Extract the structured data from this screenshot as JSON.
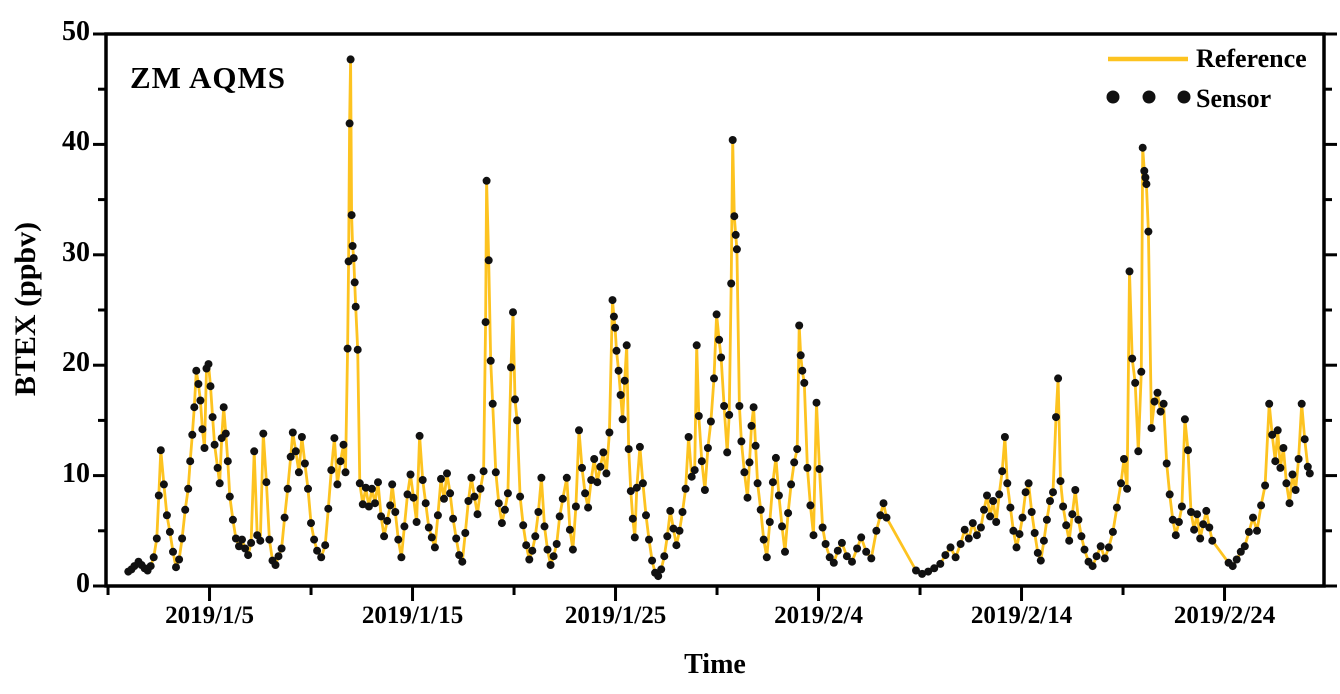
{
  "chart_data": {
    "type": "line+scatter",
    "station": "ZM AQMS",
    "xlabel": "Time",
    "ylabel": "BTEX (ppbv)",
    "legend_position": "top-right inside plot",
    "grid": false,
    "x_axis": {
      "unit": "days since 2019-01-01 00:00",
      "range": [
        -1.1,
        58.9
      ],
      "major_tick_days": [
        4,
        14,
        24,
        34,
        44,
        54
      ],
      "major_tick_labels": [
        "2019/1/5",
        "2019/1/15",
        "2019/1/25",
        "2019/2/4",
        "2019/2/14",
        "2019/2/24"
      ],
      "minor_tick_days": [
        -1,
        9,
        19,
        29,
        39,
        49
      ]
    },
    "y_axis": {
      "range": [
        0,
        50
      ],
      "major_ticks": [
        0,
        10,
        20,
        30,
        40,
        50
      ],
      "major_tick_labels": [
        "0",
        "10",
        "20",
        "30",
        "40",
        "50"
      ],
      "minor_ticks": [
        5,
        15,
        25,
        35,
        45
      ]
    },
    "series": [
      {
        "name": "Reference",
        "type": "line",
        "color": "#FDC320"
      },
      {
        "name": "Sensor",
        "type": "scatter",
        "color": "#111111"
      }
    ],
    "note": "Sensor scatter points coincide with the Reference line; values in ppbv estimated from axes",
    "points": [
      [
        0,
        1.3
      ],
      [
        0.15,
        1.5
      ],
      [
        0.3,
        1.8
      ],
      [
        0.5,
        2.2
      ],
      [
        0.65,
        1.9
      ],
      [
        0.8,
        1.6
      ],
      [
        0.95,
        1.4
      ],
      [
        1.1,
        1.8
      ],
      [
        1.25,
        2.6
      ],
      [
        1.4,
        4.3
      ],
      [
        1.5,
        8.2
      ],
      [
        1.6,
        12.3
      ],
      [
        1.75,
        9.2
      ],
      [
        1.9,
        6.4
      ],
      [
        2.05,
        4.9
      ],
      [
        2.2,
        3.1
      ],
      [
        2.35,
        1.7
      ],
      [
        2.5,
        2.4
      ],
      [
        2.65,
        4.3
      ],
      [
        2.8,
        6.9
      ],
      [
        2.95,
        8.8
      ],
      [
        3.05,
        11.3
      ],
      [
        3.15,
        13.7
      ],
      [
        3.25,
        16.2
      ],
      [
        3.35,
        19.5
      ],
      [
        3.45,
        18.3
      ],
      [
        3.55,
        16.8
      ],
      [
        3.65,
        14.2
      ],
      [
        3.75,
        12.5
      ],
      [
        3.85,
        19.7
      ],
      [
        3.95,
        20.1
      ],
      [
        4.05,
        18.1
      ],
      [
        4.15,
        15.3
      ],
      [
        4.25,
        12.8
      ],
      [
        4.4,
        10.7
      ],
      [
        4.5,
        9.3
      ],
      [
        4.6,
        13.4
      ],
      [
        4.7,
        16.2
      ],
      [
        4.8,
        13.8
      ],
      [
        4.9,
        11.3
      ],
      [
        5,
        8.1
      ],
      [
        5.15,
        6
      ],
      [
        5.3,
        4.3
      ],
      [
        5.45,
        3.6
      ],
      [
        5.6,
        4.2
      ],
      [
        5.75,
        3.4
      ],
      [
        5.9,
        2.8
      ],
      [
        6.05,
        3.9
      ],
      [
        6.2,
        12.2
      ],
      [
        6.35,
        4.6
      ],
      [
        6.5,
        4.1
      ],
      [
        6.65,
        13.8
      ],
      [
        6.8,
        9.4
      ],
      [
        6.95,
        4.2
      ],
      [
        7.1,
        2.3
      ],
      [
        7.25,
        1.9
      ],
      [
        7.4,
        2.7
      ],
      [
        7.55,
        3.4
      ],
      [
        7.7,
        6.2
      ],
      [
        7.85,
        8.8
      ],
      [
        8,
        11.7
      ],
      [
        8.1,
        13.9
      ],
      [
        8.25,
        12.2
      ],
      [
        8.4,
        10.3
      ],
      [
        8.55,
        13.5
      ],
      [
        8.7,
        11.1
      ],
      [
        8.85,
        8.8
      ],
      [
        9,
        5.7
      ],
      [
        9.15,
        4.2
      ],
      [
        9.3,
        3.2
      ],
      [
        9.5,
        2.6
      ],
      [
        9.7,
        3.7
      ],
      [
        9.85,
        7
      ],
      [
        10,
        10.5
      ],
      [
        10.15,
        13.4
      ],
      [
        10.3,
        9.2
      ],
      [
        10.45,
        11.3
      ],
      [
        10.6,
        12.8
      ],
      [
        10.7,
        10.3
      ],
      [
        10.8,
        21.5
      ],
      [
        10.85,
        29.4
      ],
      [
        10.9,
        41.9
      ],
      [
        10.95,
        47.7
      ],
      [
        11,
        33.6
      ],
      [
        11.05,
        30.8
      ],
      [
        11.1,
        29.7
      ],
      [
        11.15,
        27.5
      ],
      [
        11.2,
        25.3
      ],
      [
        11.3,
        21.4
      ],
      [
        11.4,
        9.3
      ],
      [
        11.55,
        7.4
      ],
      [
        11.7,
        8.9
      ],
      [
        11.85,
        7.2
      ],
      [
        12,
        8.8
      ],
      [
        12.15,
        7.5
      ],
      [
        12.3,
        9.4
      ],
      [
        12.45,
        6.3
      ],
      [
        12.6,
        4.5
      ],
      [
        12.75,
        5.9
      ],
      [
        12.9,
        7.3
      ],
      [
        13,
        9.2
      ],
      [
        13.15,
        6.7
      ],
      [
        13.3,
        4.2
      ],
      [
        13.45,
        2.6
      ],
      [
        13.6,
        5.4
      ],
      [
        13.75,
        8.3
      ],
      [
        13.9,
        10.1
      ],
      [
        14.05,
        8
      ],
      [
        14.2,
        5.8
      ],
      [
        14.35,
        13.6
      ],
      [
        14.5,
        9.6
      ],
      [
        14.65,
        7.5
      ],
      [
        14.8,
        5.3
      ],
      [
        14.95,
        4.4
      ],
      [
        15.1,
        3.5
      ],
      [
        15.25,
        6.4
      ],
      [
        15.4,
        9.7
      ],
      [
        15.55,
        7.9
      ],
      [
        15.7,
        10.2
      ],
      [
        15.85,
        8.4
      ],
      [
        16,
        6.1
      ],
      [
        16.15,
        4.3
      ],
      [
        16.3,
        2.8
      ],
      [
        16.45,
        2.2
      ],
      [
        16.6,
        4.8
      ],
      [
        16.75,
        7.7
      ],
      [
        16.9,
        9.8
      ],
      [
        17.05,
        8.1
      ],
      [
        17.2,
        6.5
      ],
      [
        17.35,
        8.8
      ],
      [
        17.5,
        10.4
      ],
      [
        17.6,
        23.9
      ],
      [
        17.65,
        36.7
      ],
      [
        17.75,
        29.5
      ],
      [
        17.85,
        20.4
      ],
      [
        17.95,
        16.5
      ],
      [
        18.1,
        10.3
      ],
      [
        18.25,
        7.5
      ],
      [
        18.4,
        5.7
      ],
      [
        18.55,
        6.9
      ],
      [
        18.7,
        8.4
      ],
      [
        18.85,
        19.8
      ],
      [
        18.95,
        24.8
      ],
      [
        19.05,
        16.9
      ],
      [
        19.15,
        15
      ],
      [
        19.3,
        8.1
      ],
      [
        19.45,
        5.5
      ],
      [
        19.6,
        3.7
      ],
      [
        19.75,
        2.4
      ],
      [
        19.9,
        3.2
      ],
      [
        20.05,
        4.5
      ],
      [
        20.2,
        6.7
      ],
      [
        20.35,
        9.8
      ],
      [
        20.5,
        5.4
      ],
      [
        20.65,
        3.3
      ],
      [
        20.8,
        1.9
      ],
      [
        20.95,
        2.7
      ],
      [
        21.1,
        3.8
      ],
      [
        21.25,
        6.3
      ],
      [
        21.4,
        7.9
      ],
      [
        21.6,
        9.8
      ],
      [
        21.75,
        5.1
      ],
      [
        21.9,
        3.3
      ],
      [
        22.05,
        7.2
      ],
      [
        22.2,
        14.1
      ],
      [
        22.35,
        10.7
      ],
      [
        22.5,
        8.4
      ],
      [
        22.65,
        7.1
      ],
      [
        22.8,
        9.6
      ],
      [
        22.95,
        11.5
      ],
      [
        23.1,
        9.4
      ],
      [
        23.25,
        10.8
      ],
      [
        23.4,
        12.1
      ],
      [
        23.55,
        10.2
      ],
      [
        23.7,
        13.9
      ],
      [
        23.85,
        25.9
      ],
      [
        23.92,
        24.4
      ],
      [
        23.98,
        23.4
      ],
      [
        24.05,
        21.3
      ],
      [
        24.15,
        19.5
      ],
      [
        24.25,
        17.3
      ],
      [
        24.35,
        15.1
      ],
      [
        24.45,
        18.6
      ],
      [
        24.55,
        21.8
      ],
      [
        24.65,
        12.4
      ],
      [
        24.75,
        8.6
      ],
      [
        24.85,
        6.1
      ],
      [
        24.95,
        4.4
      ],
      [
        25.05,
        8.9
      ],
      [
        25.2,
        12.6
      ],
      [
        25.35,
        9.3
      ],
      [
        25.5,
        6.4
      ],
      [
        25.65,
        4.2
      ],
      [
        25.8,
        2.3
      ],
      [
        25.95,
        1.2
      ],
      [
        26.1,
        0.9
      ],
      [
        26.25,
        1.5
      ],
      [
        26.4,
        2.7
      ],
      [
        26.55,
        4.5
      ],
      [
        26.7,
        6.8
      ],
      [
        26.85,
        5.2
      ],
      [
        27,
        3.7
      ],
      [
        27.15,
        5
      ],
      [
        27.3,
        6.7
      ],
      [
        27.45,
        8.8
      ],
      [
        27.6,
        13.5
      ],
      [
        27.75,
        9.9
      ],
      [
        27.9,
        10.5
      ],
      [
        28,
        21.8
      ],
      [
        28.1,
        15.4
      ],
      [
        28.25,
        11.3
      ],
      [
        28.4,
        8.7
      ],
      [
        28.55,
        12.5
      ],
      [
        28.7,
        14.9
      ],
      [
        28.85,
        18.8
      ],
      [
        28.98,
        24.6
      ],
      [
        29.1,
        22.3
      ],
      [
        29.2,
        20.7
      ],
      [
        29.35,
        16.3
      ],
      [
        29.5,
        12.1
      ],
      [
        29.6,
        15.5
      ],
      [
        29.7,
        27.4
      ],
      [
        29.77,
        40.4
      ],
      [
        29.85,
        33.5
      ],
      [
        29.92,
        31.8
      ],
      [
        29.98,
        30.5
      ],
      [
        30.1,
        16.3
      ],
      [
        30.2,
        13.1
      ],
      [
        30.35,
        10.3
      ],
      [
        30.5,
        8
      ],
      [
        30.6,
        11.2
      ],
      [
        30.7,
        14.5
      ],
      [
        30.8,
        16.2
      ],
      [
        30.9,
        12.7
      ],
      [
        31,
        9.3
      ],
      [
        31.15,
        6.9
      ],
      [
        31.3,
        4.2
      ],
      [
        31.45,
        2.6
      ],
      [
        31.6,
        5.8
      ],
      [
        31.75,
        9.4
      ],
      [
        31.9,
        11.6
      ],
      [
        32.05,
        8.2
      ],
      [
        32.2,
        5.4
      ],
      [
        32.35,
        3.1
      ],
      [
        32.5,
        6.6
      ],
      [
        32.65,
        9.2
      ],
      [
        32.8,
        11.2
      ],
      [
        32.95,
        12.4
      ],
      [
        33.05,
        23.6
      ],
      [
        33.12,
        20.9
      ],
      [
        33.2,
        19.5
      ],
      [
        33.3,
        18.4
      ],
      [
        33.45,
        10.7
      ],
      [
        33.6,
        7.3
      ],
      [
        33.75,
        4.6
      ],
      [
        33.9,
        16.6
      ],
      [
        34.05,
        10.6
      ],
      [
        34.2,
        5.3
      ],
      [
        34.35,
        3.8
      ],
      [
        34.55,
        2.6
      ],
      [
        34.75,
        2.1
      ],
      [
        34.95,
        3.2
      ],
      [
        35.15,
        3.9
      ],
      [
        35.4,
        2.7
      ],
      [
        35.65,
        2.2
      ],
      [
        35.9,
        3.4
      ],
      [
        36.1,
        4.4
      ],
      [
        36.35,
        3.1
      ],
      [
        36.6,
        2.5
      ],
      [
        36.85,
        5
      ],
      [
        37.05,
        6.4
      ],
      [
        37.2,
        7.5
      ],
      [
        37.35,
        6.2
      ],
      [
        38.8,
        1.4
      ],
      [
        39.1,
        1.1
      ],
      [
        39.4,
        1.3
      ],
      [
        39.7,
        1.6
      ],
      [
        40,
        2
      ],
      [
        40.25,
        2.8
      ],
      [
        40.5,
        3.5
      ],
      [
        40.75,
        2.6
      ],
      [
        41,
        3.8
      ],
      [
        41.2,
        5.1
      ],
      [
        41.4,
        4.3
      ],
      [
        41.6,
        5.7
      ],
      [
        41.8,
        4.6
      ],
      [
        42,
        5.3
      ],
      [
        42.15,
        6.9
      ],
      [
        42.3,
        8.2
      ],
      [
        42.45,
        6.3
      ],
      [
        42.6,
        7.7
      ],
      [
        42.75,
        5.8
      ],
      [
        42.9,
        8.3
      ],
      [
        43.05,
        10.4
      ],
      [
        43.18,
        13.5
      ],
      [
        43.3,
        9.3
      ],
      [
        43.45,
        7.1
      ],
      [
        43.6,
        5
      ],
      [
        43.75,
        3.5
      ],
      [
        43.9,
        4.7
      ],
      [
        44.05,
        6.2
      ],
      [
        44.2,
        8.5
      ],
      [
        44.35,
        9.3
      ],
      [
        44.5,
        6.7
      ],
      [
        44.65,
        4.8
      ],
      [
        44.8,
        3
      ],
      [
        44.95,
        2.3
      ],
      [
        45.1,
        4.1
      ],
      [
        45.25,
        6
      ],
      [
        45.4,
        7.7
      ],
      [
        45.55,
        8.5
      ],
      [
        45.7,
        15.3
      ],
      [
        45.8,
        18.8
      ],
      [
        45.92,
        9.5
      ],
      [
        46.05,
        7.2
      ],
      [
        46.2,
        5.5
      ],
      [
        46.35,
        4.1
      ],
      [
        46.5,
        6.5
      ],
      [
        46.65,
        8.7
      ],
      [
        46.8,
        6
      ],
      [
        46.95,
        4.5
      ],
      [
        47.1,
        3.3
      ],
      [
        47.3,
        2.2
      ],
      [
        47.5,
        1.8
      ],
      [
        47.7,
        2.7
      ],
      [
        47.9,
        3.6
      ],
      [
        48.1,
        2.5
      ],
      [
        48.3,
        3.5
      ],
      [
        48.5,
        4.9
      ],
      [
        48.7,
        7.1
      ],
      [
        48.9,
        9.3
      ],
      [
        49.05,
        11.5
      ],
      [
        49.2,
        8.8
      ],
      [
        49.32,
        28.5
      ],
      [
        49.45,
        20.6
      ],
      [
        49.6,
        18.4
      ],
      [
        49.75,
        12.2
      ],
      [
        49.9,
        19.4
      ],
      [
        49.97,
        39.7
      ],
      [
        50.05,
        37.6
      ],
      [
        50.1,
        37
      ],
      [
        50.15,
        36.4
      ],
      [
        50.25,
        32.1
      ],
      [
        50.4,
        14.3
      ],
      [
        50.55,
        16.7
      ],
      [
        50.7,
        17.5
      ],
      [
        50.85,
        15.8
      ],
      [
        51,
        16.5
      ],
      [
        51.15,
        11.1
      ],
      [
        51.3,
        8.3
      ],
      [
        51.45,
        6
      ],
      [
        51.6,
        4.6
      ],
      [
        51.75,
        5.8
      ],
      [
        51.9,
        7.2
      ],
      [
        52.05,
        15.1
      ],
      [
        52.2,
        12.3
      ],
      [
        52.35,
        6.7
      ],
      [
        52.5,
        5.1
      ],
      [
        52.65,
        6.5
      ],
      [
        52.8,
        4.3
      ],
      [
        52.95,
        5.6
      ],
      [
        53.1,
        6.8
      ],
      [
        53.25,
        5.3
      ],
      [
        53.4,
        4.1
      ],
      [
        54.2,
        2.1
      ],
      [
        54.4,
        1.8
      ],
      [
        54.6,
        2.4
      ],
      [
        54.8,
        3.1
      ],
      [
        55,
        3.6
      ],
      [
        55.2,
        4.9
      ],
      [
        55.4,
        6.2
      ],
      [
        55.6,
        5
      ],
      [
        55.8,
        7.3
      ],
      [
        56,
        9.1
      ],
      [
        56.2,
        16.5
      ],
      [
        56.35,
        13.7
      ],
      [
        56.5,
        11.3
      ],
      [
        56.62,
        14.1
      ],
      [
        56.75,
        10.7
      ],
      [
        56.9,
        12.5
      ],
      [
        57.05,
        9.3
      ],
      [
        57.2,
        7.5
      ],
      [
        57.35,
        10.1
      ],
      [
        57.5,
        8.7
      ],
      [
        57.65,
        11.5
      ],
      [
        57.8,
        16.5
      ],
      [
        57.95,
        13.3
      ],
      [
        58.1,
        10.8
      ],
      [
        58.2,
        10.2
      ]
    ]
  },
  "style": {
    "axis_color": "#000000",
    "background": "#ffffff",
    "line_color": "#FDC320",
    "dot_color": "#111111"
  }
}
